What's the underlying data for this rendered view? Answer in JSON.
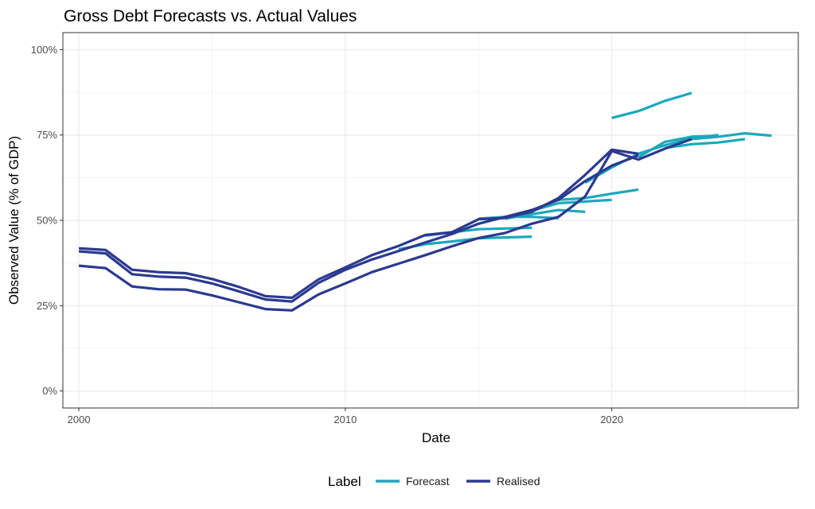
{
  "chart_data": {
    "type": "line",
    "title": "Gross Debt Forecasts vs. Actual Values",
    "xlabel": "Date",
    "ylabel": "Observed Value (% of GDP)",
    "xlim": [
      1999.4,
      2027.0
    ],
    "ylim": [
      -0.05,
      1.05
    ],
    "x_ticks": [
      2000,
      2010,
      2020
    ],
    "x_tick_labels": [
      "2000",
      "2010",
      "2020"
    ],
    "y_ticks": [
      0,
      0.25,
      0.5,
      0.75,
      1.0
    ],
    "y_tick_labels": [
      "0%",
      "25%",
      "50%",
      "75%",
      "100%"
    ],
    "grid": true,
    "legend": {
      "title": "Label",
      "position": "bottom",
      "entries": [
        {
          "label": "Forecast",
          "color": "#1aa9bc"
        },
        {
          "label": "Realised",
          "color": "#2b3990"
        }
      ]
    },
    "series": [
      {
        "label": "Forecast",
        "color": "#1aa9bc",
        "points": [
          [
            2012,
            0.415
          ],
          [
            2013,
            0.43
          ],
          [
            2014,
            0.438
          ],
          [
            2015,
            0.447
          ],
          [
            2016,
            0.45
          ],
          [
            2017,
            0.452
          ]
        ]
      },
      {
        "label": "Forecast",
        "color": "#1aa9bc",
        "points": [
          [
            2013,
            0.455
          ],
          [
            2014,
            0.465
          ],
          [
            2015,
            0.474
          ],
          [
            2016,
            0.476
          ],
          [
            2017,
            0.478
          ]
        ]
      },
      {
        "label": "Forecast",
        "color": "#1aa9bc",
        "points": [
          [
            2015,
            0.505
          ],
          [
            2016,
            0.51
          ],
          [
            2017,
            0.51
          ],
          [
            2018,
            0.506
          ]
        ]
      },
      {
        "label": "Forecast",
        "color": "#1aa9bc",
        "points": [
          [
            2016,
            0.505
          ],
          [
            2017,
            0.518
          ],
          [
            2018,
            0.53
          ],
          [
            2019,
            0.525
          ]
        ]
      },
      {
        "label": "Forecast",
        "color": "#1aa9bc",
        "points": [
          [
            2017,
            0.528
          ],
          [
            2018,
            0.55
          ],
          [
            2019,
            0.555
          ],
          [
            2020,
            0.56
          ]
        ]
      },
      {
        "label": "Forecast",
        "color": "#1aa9bc",
        "points": [
          [
            2018,
            0.56
          ],
          [
            2019,
            0.565
          ],
          [
            2020,
            0.578
          ],
          [
            2021,
            0.59
          ]
        ]
      },
      {
        "label": "Forecast",
        "color": "#1aa9bc",
        "points": [
          [
            2019,
            0.61
          ],
          [
            2020,
            0.655
          ],
          [
            2021,
            0.695
          ],
          [
            2022,
            0.72
          ],
          [
            2023,
            0.74
          ],
          [
            2024,
            0.75
          ]
        ]
      },
      {
        "label": "Forecast",
        "color": "#1aa9bc",
        "points": [
          [
            2020,
            0.8
          ],
          [
            2021,
            0.82
          ],
          [
            2022,
            0.85
          ],
          [
            2023,
            0.873
          ]
        ]
      },
      {
        "label": "Forecast",
        "color": "#1aa9bc",
        "points": [
          [
            2021,
            0.685
          ],
          [
            2022,
            0.73
          ],
          [
            2023,
            0.745
          ],
          [
            2024,
            0.748
          ]
        ]
      },
      {
        "label": "Forecast",
        "color": "#1aa9bc",
        "points": [
          [
            2022,
            0.712
          ],
          [
            2023,
            0.723
          ],
          [
            2024,
            0.728
          ],
          [
            2025,
            0.738
          ]
        ]
      },
      {
        "label": "Forecast",
        "color": "#1aa9bc",
        "points": [
          [
            2023,
            0.738
          ],
          [
            2024,
            0.745
          ],
          [
            2025,
            0.755
          ],
          [
            2026,
            0.748
          ]
        ]
      },
      {
        "label": "Realised",
        "color": "#2b3990",
        "points": [
          [
            2000,
            0.367
          ],
          [
            2001,
            0.36
          ],
          [
            2002,
            0.306
          ],
          [
            2003,
            0.298
          ],
          [
            2004,
            0.297
          ],
          [
            2005,
            0.28
          ],
          [
            2006,
            0.26
          ],
          [
            2007,
            0.24
          ],
          [
            2008,
            0.236
          ],
          [
            2009,
            0.283
          ],
          [
            2010,
            0.315
          ],
          [
            2011,
            0.348
          ],
          [
            2012,
            0.373
          ],
          [
            2013,
            0.398
          ],
          [
            2014,
            0.424
          ],
          [
            2015,
            0.448
          ],
          [
            2016,
            0.463
          ],
          [
            2017,
            0.49
          ],
          [
            2018,
            0.51
          ],
          [
            2019,
            0.57
          ],
          [
            2020,
            0.703
          ],
          [
            2021,
            0.678
          ],
          [
            2022,
            0.71
          ],
          [
            2023,
            0.738
          ]
        ]
      },
      {
        "label": "Realised",
        "color": "#2b3990",
        "points": [
          [
            2000,
            0.409
          ],
          [
            2001,
            0.403
          ],
          [
            2002,
            0.342
          ],
          [
            2003,
            0.335
          ],
          [
            2004,
            0.332
          ],
          [
            2005,
            0.315
          ],
          [
            2006,
            0.292
          ],
          [
            2007,
            0.268
          ],
          [
            2008,
            0.262
          ],
          [
            2009,
            0.317
          ],
          [
            2010,
            0.355
          ],
          [
            2011,
            0.385
          ],
          [
            2012,
            0.41
          ],
          [
            2013,
            0.435
          ],
          [
            2014,
            0.46
          ],
          [
            2015,
            0.49
          ],
          [
            2016,
            0.51
          ],
          [
            2017,
            0.53
          ],
          [
            2018,
            0.56
          ],
          [
            2019,
            0.615
          ],
          [
            2020,
            0.66
          ],
          [
            2021,
            0.69
          ]
        ]
      },
      {
        "label": "Realised",
        "color": "#2b3990",
        "points": [
          [
            2000,
            0.418
          ],
          [
            2001,
            0.413
          ],
          [
            2002,
            0.355
          ],
          [
            2003,
            0.348
          ],
          [
            2004,
            0.345
          ],
          [
            2005,
            0.328
          ],
          [
            2006,
            0.305
          ],
          [
            2007,
            0.278
          ],
          [
            2008,
            0.273
          ],
          [
            2009,
            0.327
          ],
          [
            2010,
            0.362
          ],
          [
            2011,
            0.398
          ],
          [
            2012,
            0.425
          ],
          [
            2013,
            0.457
          ],
          [
            2014,
            0.465
          ],
          [
            2015,
            0.503
          ],
          [
            2016,
            0.507
          ],
          [
            2017,
            0.525
          ],
          [
            2018,
            0.565
          ],
          [
            2019,
            0.633
          ],
          [
            2020,
            0.707
          ],
          [
            2021,
            0.695
          ]
        ]
      }
    ]
  }
}
